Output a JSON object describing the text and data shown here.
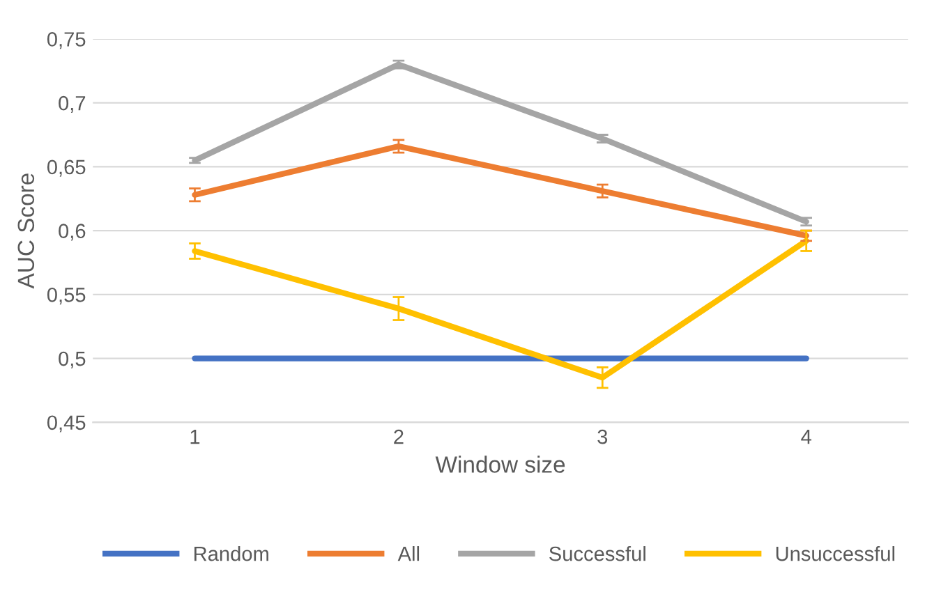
{
  "chart_data": {
    "type": "line",
    "xlabel": "Window size",
    "ylabel": "AUC Score",
    "categories": [
      "1",
      "2",
      "3",
      "4"
    ],
    "series": [
      {
        "name": "Random",
        "color": "#4472c4",
        "values": [
          0.5,
          0.5,
          0.5,
          0.5
        ]
      },
      {
        "name": "All",
        "color": "#ed7d31",
        "values": [
          0.628,
          0.666,
          0.631,
          0.596
        ],
        "errors": [
          0.005,
          0.005,
          0.005,
          0.004
        ]
      },
      {
        "name": "Successful",
        "color": "#a5a5a5",
        "values": [
          0.655,
          0.73,
          0.672,
          0.607
        ],
        "errors": [
          0.002,
          0.003,
          0.003,
          0.003
        ]
      },
      {
        "name": "Unsuccessful",
        "color": "#ffc000",
        "values": [
          0.584,
          0.539,
          0.485,
          0.592
        ],
        "errors": [
          0.006,
          0.009,
          0.008,
          0.008
        ]
      }
    ],
    "ylim": [
      0.45,
      0.75
    ],
    "yticks": [
      {
        "value": 0.45,
        "label": "0,45"
      },
      {
        "value": 0.5,
        "label": "0,5"
      },
      {
        "value": 0.55,
        "label": "0,55"
      },
      {
        "value": 0.6,
        "label": "0,6"
      },
      {
        "value": 0.65,
        "label": "0,65"
      },
      {
        "value": 0.7,
        "label": "0,7"
      },
      {
        "value": 0.75,
        "label": "0,75"
      }
    ],
    "grid": "y",
    "legend": "bottom",
    "marker": "none",
    "line_style": "solid"
  }
}
